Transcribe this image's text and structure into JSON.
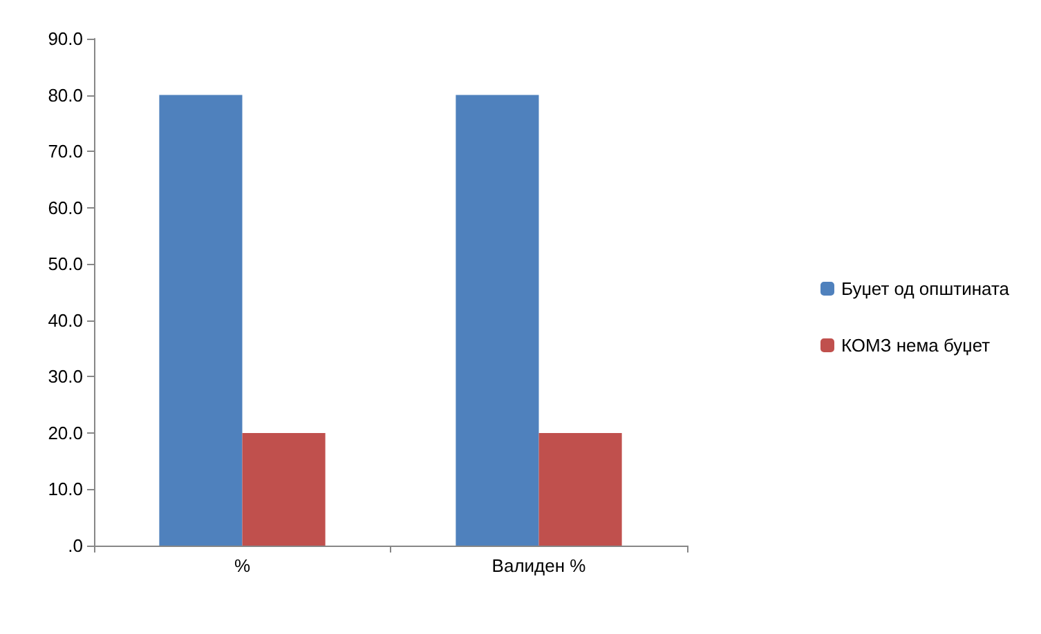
{
  "chart_data": {
    "type": "bar",
    "categories": [
      "%",
      "Валиден %"
    ],
    "series": [
      {
        "name": "Буџет од општината",
        "color": "#4f81bd",
        "values": [
          80,
          80
        ]
      },
      {
        "name": "КОМЗ нема буџет",
        "color": "#c0504d",
        "values": [
          20,
          20
        ]
      }
    ],
    "ylim": [
      0,
      90
    ],
    "yticks": [
      {
        "value": 0,
        "label": ".0"
      },
      {
        "value": 10,
        "label": "10.0"
      },
      {
        "value": 20,
        "label": "20.0"
      },
      {
        "value": 30,
        "label": "30.0"
      },
      {
        "value": 40,
        "label": "40.0"
      },
      {
        "value": 50,
        "label": "50.0"
      },
      {
        "value": 60,
        "label": "60.0"
      },
      {
        "value": 70,
        "label": "70.0"
      },
      {
        "value": 80,
        "label": "80.0"
      },
      {
        "value": 90,
        "label": "90.0"
      }
    ],
    "grid": false,
    "legend": "right"
  }
}
